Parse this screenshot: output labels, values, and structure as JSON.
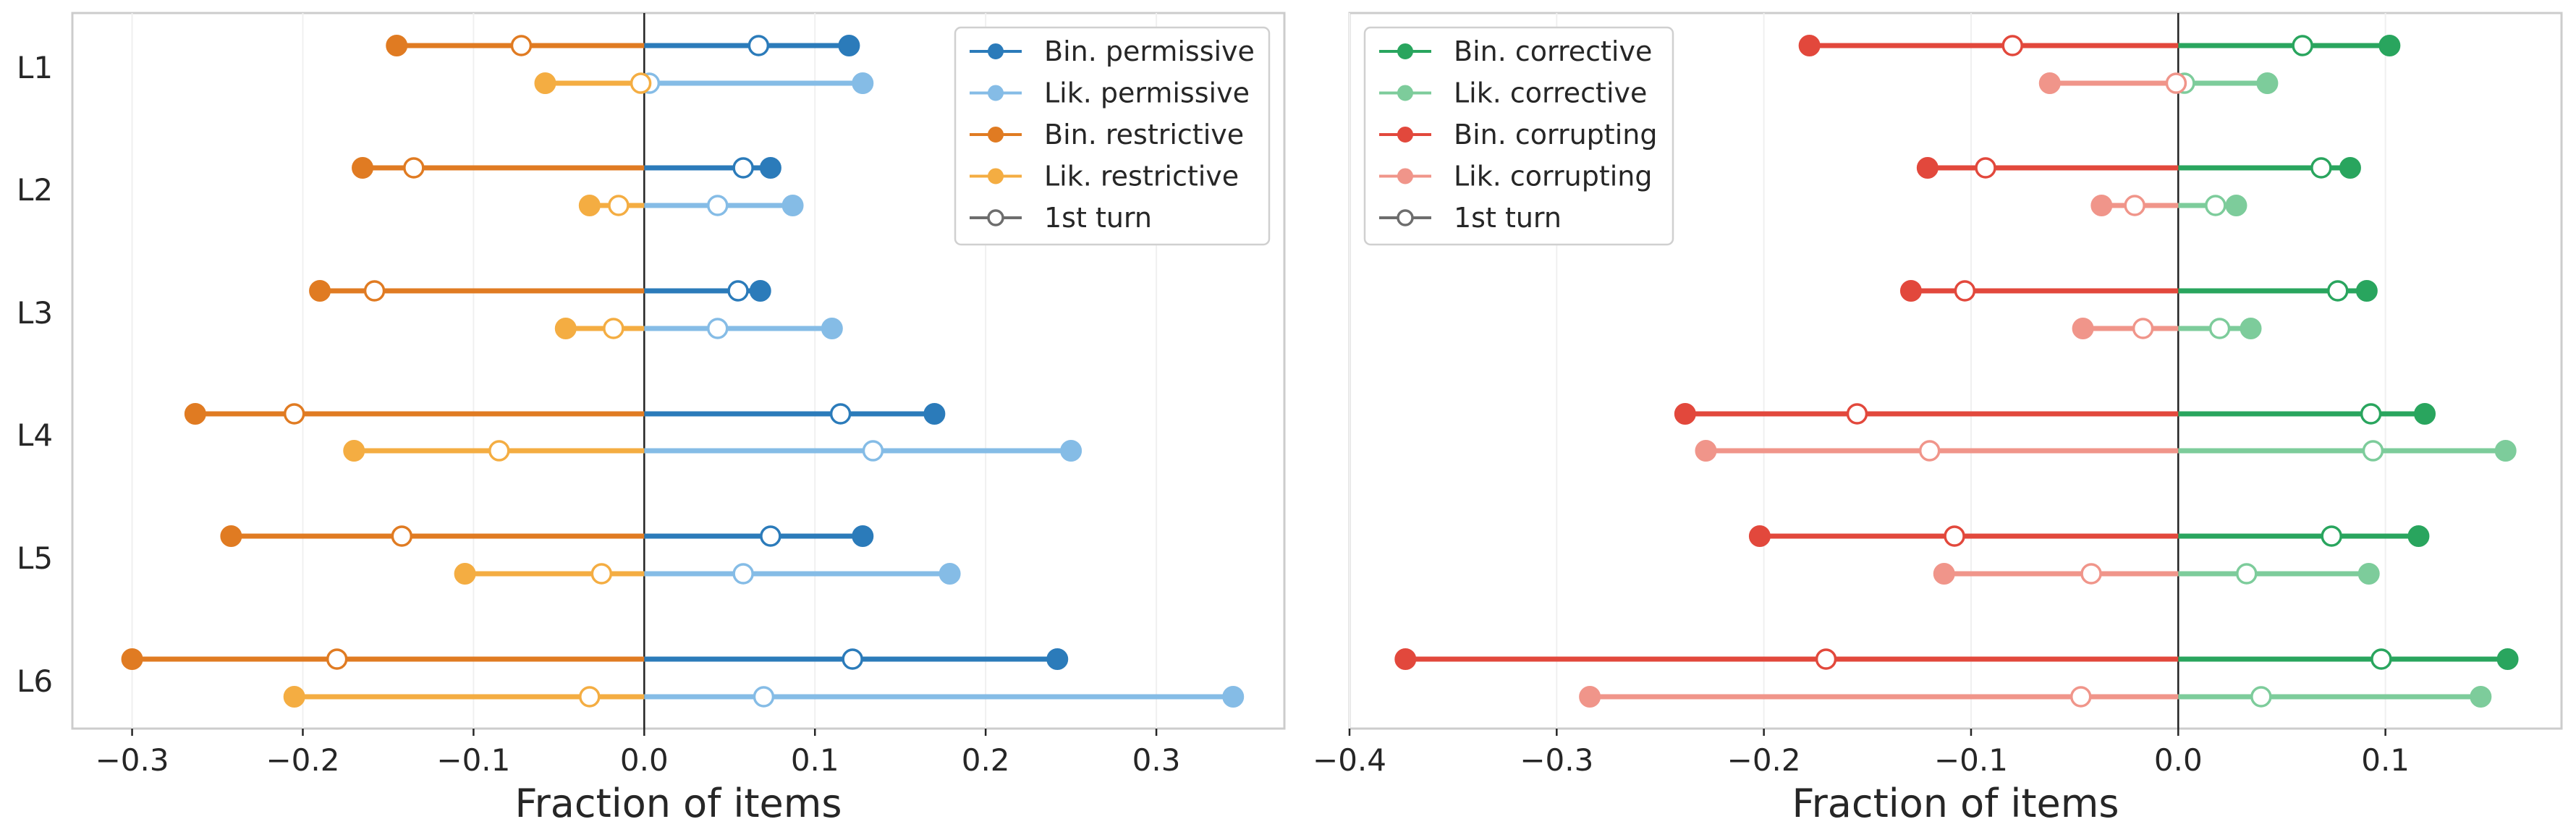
{
  "chart_data": [
    {
      "type": "dumbbell",
      "xlabel": "Fraction of items",
      "xlim": [
        -0.335,
        0.375
      ],
      "xticks": [
        -0.3,
        -0.2,
        -0.1,
        0.0,
        0.1,
        0.2,
        0.3
      ],
      "xtick_labels": [
        "−0.3",
        "−0.2",
        "−0.1",
        "0.0",
        "0.1",
        "0.2",
        "0.3"
      ],
      "categories": [
        "L1",
        "L2",
        "L3",
        "L4",
        "L5",
        "L6"
      ],
      "legend": {
        "placement": "top-right",
        "entries": [
          {
            "label": "Bin. permissive",
            "color": "#2b7bba",
            "marker": "filled"
          },
          {
            "label": "Lik. permissive",
            "color": "#85bce6",
            "marker": "filled"
          },
          {
            "label": "Bin. restrictive",
            "color": "#e07b22",
            "marker": "filled"
          },
          {
            "label": "Lik. restrictive",
            "color": "#f4ad42",
            "marker": "filled"
          },
          {
            "label": "1st turn",
            "color": "#6d6d6d",
            "marker": "open"
          }
        ]
      },
      "series": [
        {
          "name": "Bin. permissive",
          "color": "#2b7bba",
          "row": "upper",
          "side": "positive",
          "final": [
            0.12,
            0.074,
            0.068,
            0.17,
            0.128,
            0.242
          ],
          "first_turn": [
            0.067,
            0.058,
            0.055,
            0.115,
            0.074,
            0.122
          ]
        },
        {
          "name": "Bin. restrictive",
          "color": "#e07b22",
          "row": "upper",
          "side": "negative",
          "final": [
            -0.145,
            -0.165,
            -0.19,
            -0.263,
            -0.242,
            -0.3
          ],
          "first_turn": [
            -0.072,
            -0.135,
            -0.158,
            -0.205,
            -0.142,
            -0.18
          ]
        },
        {
          "name": "Lik. permissive",
          "color": "#85bce6",
          "row": "lower",
          "side": "positive",
          "final": [
            0.128,
            0.087,
            0.11,
            0.25,
            0.179,
            0.345
          ],
          "first_turn": [
            0.003,
            0.043,
            0.043,
            0.134,
            0.058,
            0.07
          ]
        },
        {
          "name": "Lik. restrictive",
          "color": "#f4ad42",
          "row": "lower",
          "side": "negative",
          "final": [
            -0.058,
            -0.032,
            -0.046,
            -0.17,
            -0.105,
            -0.205
          ],
          "first_turn": [
            -0.002,
            -0.015,
            -0.018,
            -0.085,
            -0.025,
            -0.032
          ]
        }
      ]
    },
    {
      "type": "dumbbell",
      "xlabel": "Fraction of items",
      "xlim": [
        -0.4,
        0.185
      ],
      "xticks": [
        -0.4,
        -0.3,
        -0.2,
        -0.1,
        0.0,
        0.1
      ],
      "xtick_labels": [
        "−0.4",
        "−0.3",
        "−0.2",
        "−0.1",
        "0.0",
        "0.1"
      ],
      "categories": [
        "L1",
        "L2",
        "L3",
        "L4",
        "L5",
        "L6"
      ],
      "legend": {
        "placement": "top-left",
        "entries": [
          {
            "label": "Bin. corrective",
            "color": "#29a55e",
            "marker": "filled"
          },
          {
            "label": "Lik. corrective",
            "color": "#7dcc9b",
            "marker": "filled"
          },
          {
            "label": "Bin. corrupting",
            "color": "#e2483c",
            "marker": "filled"
          },
          {
            "label": "Lik. corrupting",
            "color": "#f0958a",
            "marker": "filled"
          },
          {
            "label": "1st turn",
            "color": "#6d6d6d",
            "marker": "open"
          }
        ]
      },
      "series": [
        {
          "name": "Bin. corrective",
          "color": "#29a55e",
          "row": "upper",
          "side": "positive",
          "final": [
            0.102,
            0.083,
            0.091,
            0.119,
            0.116,
            0.159
          ],
          "first_turn": [
            0.06,
            0.069,
            0.077,
            0.093,
            0.074,
            0.098
          ]
        },
        {
          "name": "Bin. corrupting",
          "color": "#e2483c",
          "row": "upper",
          "side": "negative",
          "final": [
            -0.178,
            -0.121,
            -0.129,
            -0.238,
            -0.202,
            -0.373
          ],
          "first_turn": [
            -0.08,
            -0.093,
            -0.103,
            -0.155,
            -0.108,
            -0.17
          ]
        },
        {
          "name": "Lik. corrective",
          "color": "#7dcc9b",
          "row": "lower",
          "side": "positive",
          "final": [
            0.043,
            0.028,
            0.035,
            0.158,
            0.092,
            0.146
          ],
          "first_turn": [
            0.003,
            0.018,
            0.02,
            0.094,
            0.033,
            0.04
          ]
        },
        {
          "name": "Lik. corrupting",
          "color": "#f0958a",
          "row": "lower",
          "side": "negative",
          "final": [
            -0.062,
            -0.037,
            -0.046,
            -0.228,
            -0.113,
            -0.284
          ],
          "first_turn": [
            -0.001,
            -0.021,
            -0.017,
            -0.12,
            -0.042,
            -0.047
          ]
        }
      ]
    }
  ]
}
